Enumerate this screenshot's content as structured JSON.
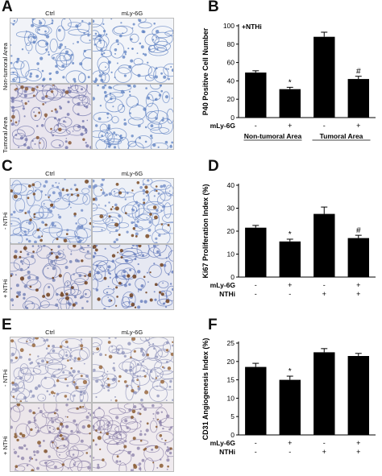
{
  "panels": {
    "A": {
      "letter": "A",
      "col_labels": [
        "Ctrl",
        "mLy-6G"
      ],
      "row_labels": [
        "Non-tumoral Area",
        "Tumoral Area"
      ]
    },
    "B": {
      "letter": "B"
    },
    "C": {
      "letter": "C",
      "col_labels": [
        "Ctrl",
        "mLy-6G"
      ],
      "row_labels": [
        "- NTHi",
        "+ NTHi"
      ]
    },
    "D": {
      "letter": "D"
    },
    "E": {
      "letter": "E",
      "col_labels": [
        "Ctrl",
        "mLy-6G"
      ],
      "row_labels": [
        "- NTHi",
        "+ NTHi"
      ]
    },
    "F": {
      "letter": "F"
    }
  },
  "chart_data": [
    {
      "type": "bar",
      "panel": "B",
      "annotation": "+NTHi",
      "ylabel": "P40 Positive Cell Number",
      "ylim": [
        0,
        100
      ],
      "yticks": [
        0,
        20,
        40,
        60,
        80,
        100
      ],
      "values": [
        49,
        31,
        88,
        42
      ],
      "errors": [
        2,
        2,
        5,
        3
      ],
      "significance": [
        "",
        "*",
        "",
        "#"
      ],
      "row_labels": [
        "mLy-6G"
      ],
      "rows": [
        [
          "-",
          "+",
          "-",
          "+"
        ]
      ],
      "group_labels": [
        "Non-tumoral Area",
        "Tumoral Area"
      ]
    },
    {
      "type": "bar",
      "panel": "D",
      "ylabel": "Ki67 Proliferation Index (%)",
      "ylim": [
        0,
        40
      ],
      "yticks": [
        0,
        10,
        20,
        30,
        40
      ],
      "values": [
        21.5,
        15.5,
        27.5,
        17
      ],
      "errors": [
        1,
        1,
        3,
        1.2
      ],
      "significance": [
        "",
        "*",
        "",
        "#"
      ],
      "row_labels": [
        "mLy-6G",
        "NTHi"
      ],
      "rows": [
        [
          "-",
          "+",
          "-",
          "+"
        ],
        [
          "-",
          "-",
          "+",
          "+"
        ]
      ]
    },
    {
      "type": "bar",
      "panel": "F",
      "ylabel": "CD31 Angiogenesis Index (%)",
      "ylim": [
        0,
        25
      ],
      "yticks": [
        0,
        5,
        10,
        15,
        20,
        25
      ],
      "values": [
        18.5,
        15,
        22.5,
        21.5
      ],
      "errors": [
        1,
        1,
        1,
        0.7
      ],
      "significance": [
        "",
        "*",
        "",
        ""
      ],
      "row_labels": [
        "mLy-6G",
        "NTHi"
      ],
      "rows": [
        [
          "-",
          "+",
          "-",
          "+"
        ],
        [
          "-",
          "-",
          "+",
          "+"
        ]
      ]
    }
  ]
}
